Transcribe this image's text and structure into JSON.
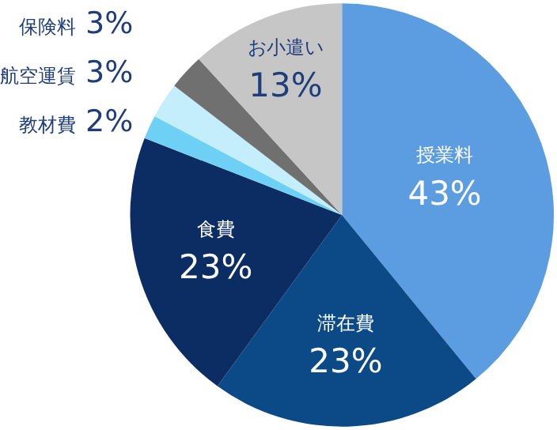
{
  "chart_data": {
    "type": "pie",
    "categories": [
      "授業料",
      "滞在費",
      "食費",
      "教材費",
      "航空運賃",
      "保険料",
      "お小遣い"
    ],
    "values": [
      43,
      23,
      23,
      2,
      3,
      3,
      13
    ],
    "value_labels": [
      "43%",
      "23%",
      "23%",
      "2%",
      "3%",
      "3%",
      "13%"
    ],
    "colors": [
      "#5b9de0",
      "#0b4a86",
      "#0c2d63",
      "#6fd0f5",
      "#c4eefb",
      "#707070",
      "#c6c6c6"
    ],
    "legend": false
  }
}
